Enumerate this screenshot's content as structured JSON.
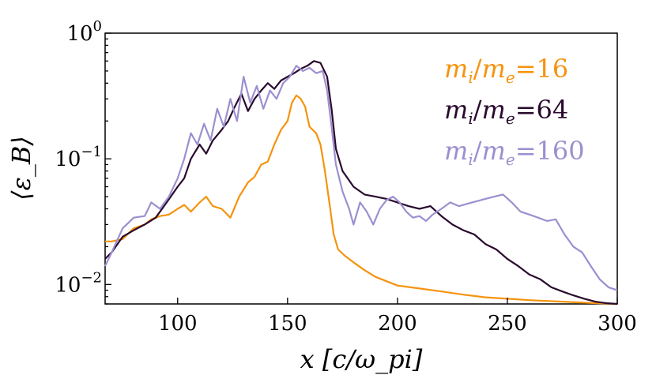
{
  "chart_data": {
    "type": "line",
    "title": "",
    "xlabel": "x [c/ω_pi]",
    "ylabel": "⟨ε_B⟩",
    "xlim": [
      67,
      300
    ],
    "ylim": [
      0.007,
      1.0
    ],
    "yscale": "log",
    "x_ticks": [
      100,
      150,
      200,
      250,
      300
    ],
    "x_tick_labels": [
      "100",
      "150",
      "200",
      "250",
      "300"
    ],
    "y_ticks": [
      0.01,
      0.1,
      1.0
    ],
    "y_tick_labels": [
      {
        "base": "10",
        "exp": "−2"
      },
      {
        "base": "10",
        "exp": "−1"
      },
      {
        "base": "10",
        "exp": "0"
      }
    ],
    "legend_placement": "top-right",
    "series": [
      {
        "name": "m_i/m_e = 16",
        "label_main": "m",
        "label_sub1": "i",
        "label_sub2": "e",
        "label_value": "16",
        "color": "#f5930f",
        "points": [
          [
            67,
            0.022
          ],
          [
            70,
            0.022
          ],
          [
            75,
            0.023
          ],
          [
            80,
            0.028
          ],
          [
            85,
            0.03
          ],
          [
            88,
            0.033
          ],
          [
            92,
            0.035
          ],
          [
            96,
            0.036
          ],
          [
            100,
            0.04
          ],
          [
            103,
            0.043
          ],
          [
            106,
            0.038
          ],
          [
            110,
            0.045
          ],
          [
            113,
            0.05
          ],
          [
            116,
            0.042
          ],
          [
            120,
            0.04
          ],
          [
            124,
            0.034
          ],
          [
            128,
            0.05
          ],
          [
            132,
            0.065
          ],
          [
            135,
            0.072
          ],
          [
            138,
            0.09
          ],
          [
            141,
            0.095
          ],
          [
            144,
            0.13
          ],
          [
            147,
            0.17
          ],
          [
            150,
            0.2
          ],
          [
            152,
            0.28
          ],
          [
            154,
            0.32
          ],
          [
            156,
            0.3
          ],
          [
            158,
            0.26
          ],
          [
            160,
            0.18
          ],
          [
            163,
            0.16
          ],
          [
            165,
            0.13
          ],
          [
            167,
            0.08
          ],
          [
            169,
            0.045
          ],
          [
            171,
            0.025
          ],
          [
            173,
            0.019
          ],
          [
            176,
            0.017
          ],
          [
            180,
            0.015
          ],
          [
            185,
            0.013
          ],
          [
            190,
            0.0115
          ],
          [
            200,
            0.0098
          ],
          [
            210,
            0.0093
          ],
          [
            220,
            0.0088
          ],
          [
            230,
            0.0083
          ],
          [
            240,
            0.0079
          ],
          [
            250,
            0.0077
          ],
          [
            260,
            0.0075
          ],
          [
            275,
            0.0073
          ],
          [
            290,
            0.0071
          ],
          [
            300,
            0.007
          ]
        ]
      },
      {
        "name": "m_i/m_e = 64",
        "label_main": "m",
        "label_sub1": "i",
        "label_sub2": "e",
        "label_value": "64",
        "color": "#2a0a2e",
        "points": [
          [
            67,
            0.016
          ],
          [
            70,
            0.018
          ],
          [
            75,
            0.024
          ],
          [
            80,
            0.027
          ],
          [
            85,
            0.03
          ],
          [
            90,
            0.034
          ],
          [
            95,
            0.045
          ],
          [
            100,
            0.06
          ],
          [
            103,
            0.07
          ],
          [
            106,
            0.1
          ],
          [
            110,
            0.13
          ],
          [
            113,
            0.11
          ],
          [
            116,
            0.14
          ],
          [
            120,
            0.17
          ],
          [
            123,
            0.2
          ],
          [
            126,
            0.26
          ],
          [
            129,
            0.33
          ],
          [
            132,
            0.24
          ],
          [
            135,
            0.3
          ],
          [
            138,
            0.35
          ],
          [
            141,
            0.4
          ],
          [
            144,
            0.36
          ],
          [
            147,
            0.42
          ],
          [
            150,
            0.45
          ],
          [
            153,
            0.48
          ],
          [
            156,
            0.52
          ],
          [
            159,
            0.55
          ],
          [
            162,
            0.6
          ],
          [
            165,
            0.58
          ],
          [
            168,
            0.45
          ],
          [
            170,
            0.25
          ],
          [
            172,
            0.12
          ],
          [
            175,
            0.08
          ],
          [
            180,
            0.06
          ],
          [
            185,
            0.052
          ],
          [
            190,
            0.05
          ],
          [
            195,
            0.048
          ],
          [
            200,
            0.045
          ],
          [
            205,
            0.042
          ],
          [
            210,
            0.04
          ],
          [
            215,
            0.042
          ],
          [
            220,
            0.035
          ],
          [
            225,
            0.03
          ],
          [
            230,
            0.027
          ],
          [
            235,
            0.025
          ],
          [
            240,
            0.021
          ],
          [
            245,
            0.019
          ],
          [
            250,
            0.016
          ],
          [
            255,
            0.014
          ],
          [
            260,
            0.012
          ],
          [
            265,
            0.011
          ],
          [
            270,
            0.0095
          ],
          [
            275,
            0.0088
          ],
          [
            280,
            0.0082
          ],
          [
            285,
            0.0077
          ],
          [
            290,
            0.0073
          ],
          [
            295,
            0.0071
          ],
          [
            300,
            0.007
          ]
        ]
      },
      {
        "name": "m_i/m_e = 160",
        "label_main": "m",
        "label_sub1": "i",
        "label_sub2": "e",
        "label_value": "160",
        "color": "#9c8fd0",
        "points": [
          [
            67,
            0.014
          ],
          [
            70,
            0.018
          ],
          [
            75,
            0.028
          ],
          [
            80,
            0.034
          ],
          [
            85,
            0.035
          ],
          [
            88,
            0.045
          ],
          [
            92,
            0.04
          ],
          [
            96,
            0.05
          ],
          [
            100,
            0.07
          ],
          [
            103,
            0.1
          ],
          [
            106,
            0.16
          ],
          [
            109,
            0.13
          ],
          [
            112,
            0.19
          ],
          [
            115,
            0.14
          ],
          [
            118,
            0.25
          ],
          [
            121,
            0.18
          ],
          [
            124,
            0.3
          ],
          [
            127,
            0.2
          ],
          [
            130,
            0.45
          ],
          [
            133,
            0.28
          ],
          [
            136,
            0.38
          ],
          [
            139,
            0.25
          ],
          [
            142,
            0.35
          ],
          [
            145,
            0.3
          ],
          [
            148,
            0.4
          ],
          [
            151,
            0.45
          ],
          [
            154,
            0.55
          ],
          [
            157,
            0.5
          ],
          [
            160,
            0.53
          ],
          [
            163,
            0.48
          ],
          [
            166,
            0.5
          ],
          [
            168,
            0.35
          ],
          [
            170,
            0.18
          ],
          [
            172,
            0.09
          ],
          [
            175,
            0.055
          ],
          [
            178,
            0.04
          ],
          [
            180,
            0.03
          ],
          [
            183,
            0.045
          ],
          [
            186,
            0.038
          ],
          [
            189,
            0.03
          ],
          [
            192,
            0.04
          ],
          [
            195,
            0.047
          ],
          [
            198,
            0.05
          ],
          [
            201,
            0.045
          ],
          [
            204,
            0.038
          ],
          [
            207,
            0.034
          ],
          [
            210,
            0.035
          ],
          [
            213,
            0.032
          ],
          [
            216,
            0.036
          ],
          [
            220,
            0.04
          ],
          [
            224,
            0.045
          ],
          [
            228,
            0.042
          ],
          [
            232,
            0.044
          ],
          [
            236,
            0.046
          ],
          [
            240,
            0.048
          ],
          [
            244,
            0.05
          ],
          [
            248,
            0.052
          ],
          [
            252,
            0.045
          ],
          [
            256,
            0.038
          ],
          [
            260,
            0.036
          ],
          [
            264,
            0.034
          ],
          [
            268,
            0.032
          ],
          [
            272,
            0.033
          ],
          [
            276,
            0.025
          ],
          [
            280,
            0.02
          ],
          [
            284,
            0.018
          ],
          [
            288,
            0.014
          ],
          [
            292,
            0.011
          ],
          [
            296,
            0.0095
          ],
          [
            300,
            0.009
          ]
        ]
      }
    ]
  }
}
